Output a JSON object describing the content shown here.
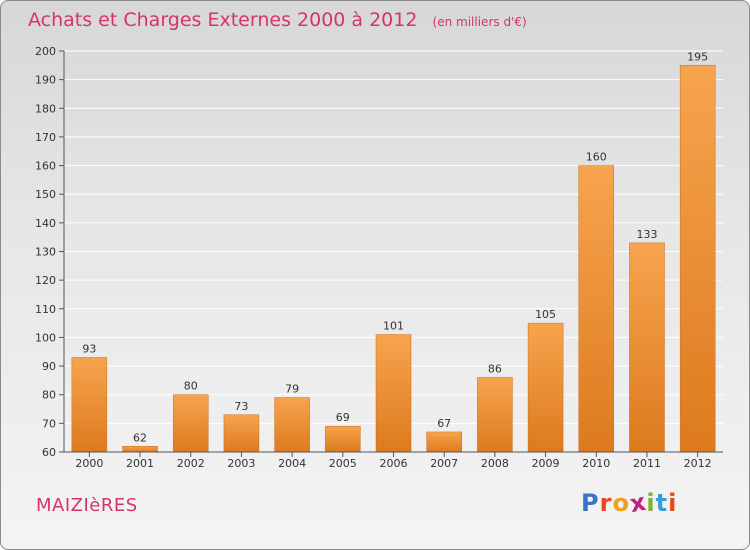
{
  "header": {
    "title": "Achats et Charges Externes 2000 à 2012",
    "subtitle": "(en milliers d'€)"
  },
  "footer": {
    "commune": "MAIZIèRES",
    "logo": {
      "text": "Proxiti",
      "letter_colors": [
        "#3b73c8",
        "#e8461e",
        "#f0a01e",
        "#c2207d",
        "#79b531",
        "#3b9bd8",
        "#e8461e"
      ]
    }
  },
  "colors": {
    "bar_top": "#f7a44e",
    "bar_bottom": "#dd7a1e",
    "grid": "#ffffff",
    "title": "#d6336b"
  },
  "chart_data": {
    "type": "bar",
    "title": "Achats et Charges Externes 2000 à 2012",
    "subtitle": "(en milliers d'€)",
    "categories": [
      "2000",
      "2001",
      "2002",
      "2003",
      "2004",
      "2005",
      "2006",
      "2007",
      "2008",
      "2009",
      "2010",
      "2011",
      "2012"
    ],
    "values": [
      93,
      62,
      80,
      73,
      79,
      69,
      101,
      67,
      86,
      105,
      160,
      133,
      195
    ],
    "ylim": [
      60,
      200
    ],
    "yticks": [
      60,
      70,
      80,
      90,
      100,
      110,
      120,
      130,
      140,
      150,
      160,
      170,
      180,
      190,
      200
    ],
    "grid": true,
    "data_labels": true
  }
}
